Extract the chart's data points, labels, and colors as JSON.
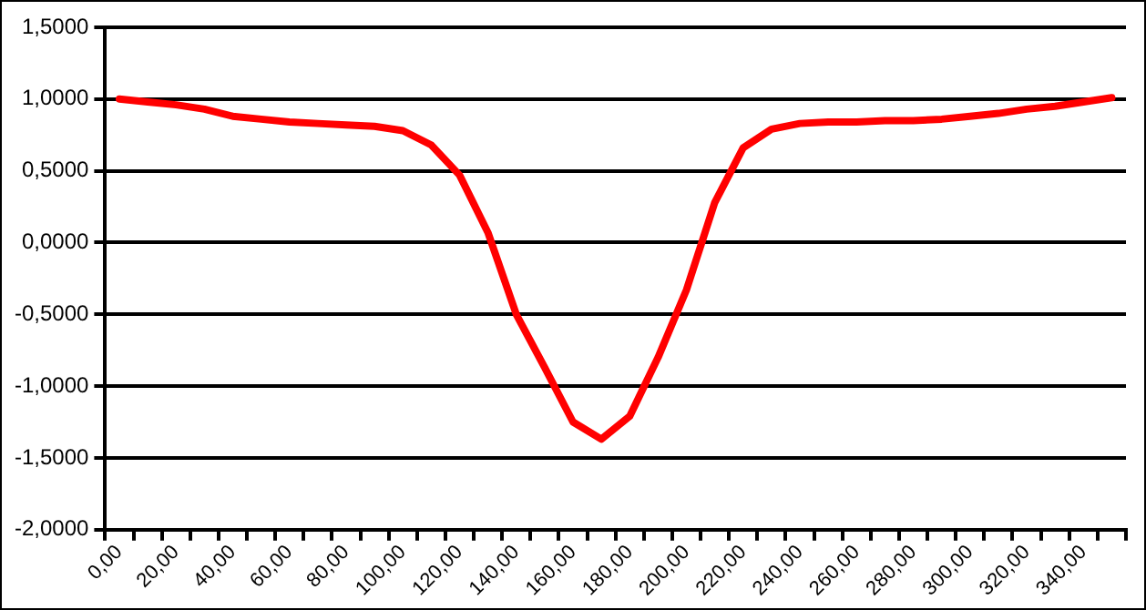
{
  "chart_data": {
    "type": "line",
    "categories": [
      "0,00",
      null,
      "20,00",
      null,
      "40,00",
      null,
      "60,00",
      null,
      "80,00",
      null,
      "100,00",
      null,
      "120,00",
      null,
      "140,00",
      null,
      "160,00",
      null,
      "180,00",
      null,
      "200,00",
      null,
      "220,00",
      null,
      "240,00",
      null,
      "260,00",
      null,
      "280,00",
      null,
      "300,00",
      null,
      "320,00",
      null,
      "340,00",
      null
    ],
    "values": [
      1.0,
      0.98,
      0.96,
      0.93,
      0.88,
      0.86,
      0.84,
      0.83,
      0.82,
      0.81,
      0.78,
      0.68,
      0.47,
      0.07,
      -0.5,
      -0.87,
      -1.25,
      -1.37,
      -1.21,
      -0.8,
      -0.33,
      0.28,
      0.66,
      0.79,
      0.83,
      0.84,
      0.84,
      0.85,
      0.85,
      0.86,
      0.88,
      0.9,
      0.93,
      0.95,
      0.98,
      1.01
    ],
    "color": "#ff0000",
    "ylim": [
      -2,
      1.5
    ],
    "yticks": [
      {
        "value": -2,
        "label": "-2,0000"
      },
      {
        "value": -1.5,
        "label": "-1,5000"
      },
      {
        "value": -1,
        "label": "-1,0000"
      },
      {
        "value": -0.5,
        "label": "-0,5000"
      },
      {
        "value": 0,
        "label": "0,0000"
      },
      {
        "value": 0.5,
        "label": "0,5000"
      },
      {
        "value": 1,
        "label": "1,0000"
      },
      {
        "value": 1.5,
        "label": "1,5000"
      }
    ],
    "grid": "y"
  }
}
